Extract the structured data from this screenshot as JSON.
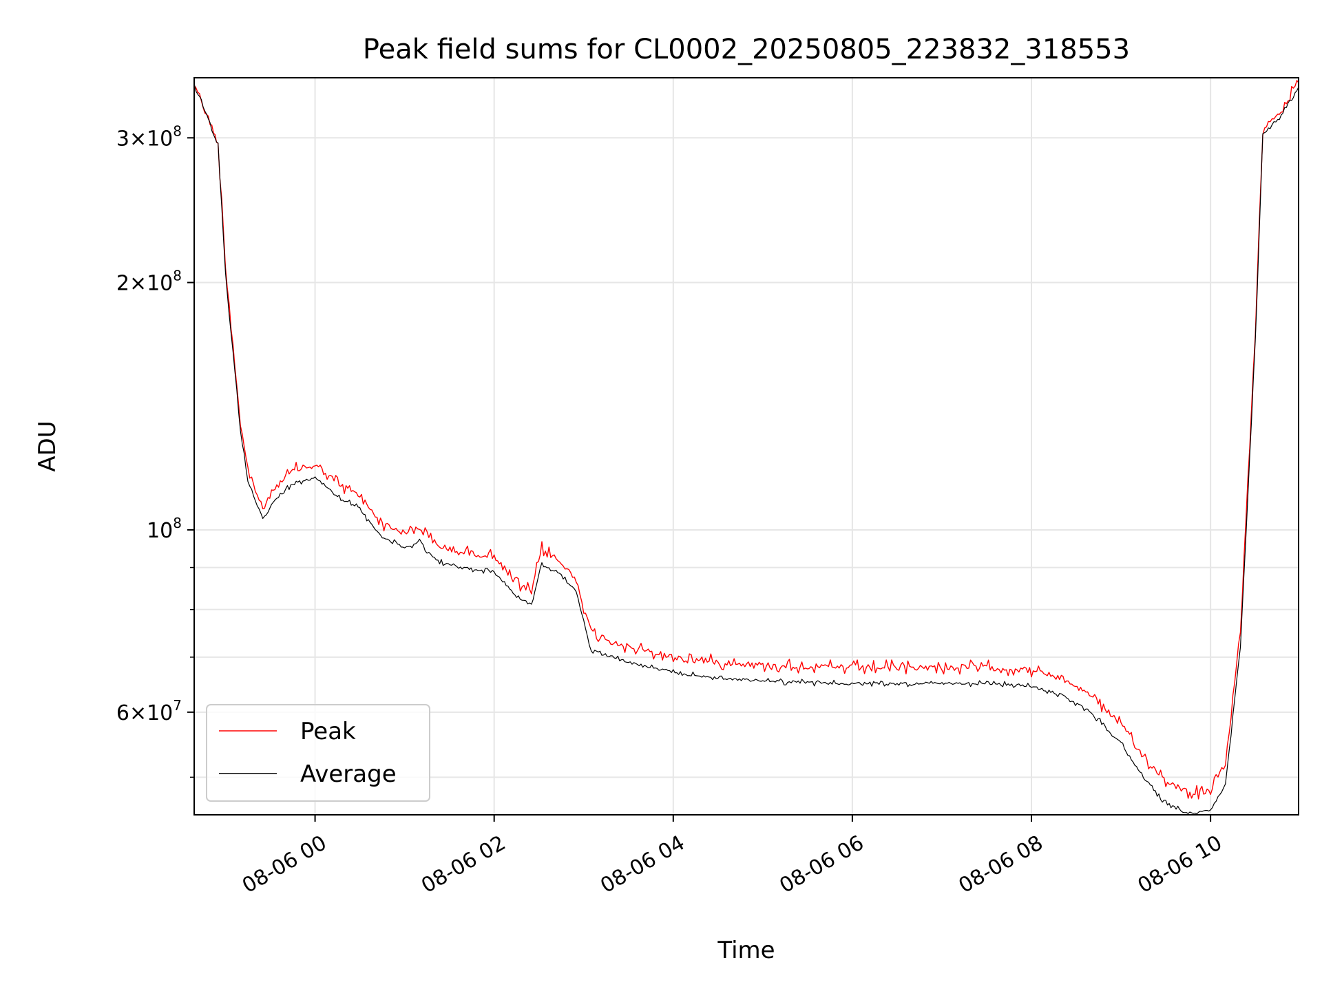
{
  "chart_data": {
    "type": "line",
    "title": "Peak field sums for CL0002_20250805_223832_318553",
    "xlabel": "Time",
    "ylabel": "ADU",
    "x_scale": "time",
    "y_scale": "log",
    "xlim": [
      "08-05 22:39",
      "08-06 10:59"
    ],
    "ylim": [
      45000000,
      355000000
    ],
    "grid": true,
    "legend_position": "lower-left",
    "x_ticks": [
      {
        "t": "08-06 00:00",
        "label": "08-06 00"
      },
      {
        "t": "08-06 02:00",
        "label": "08-06 02"
      },
      {
        "t": "08-06 04:00",
        "label": "08-06 04"
      },
      {
        "t": "08-06 06:00",
        "label": "08-06 06"
      },
      {
        "t": "08-06 08:00",
        "label": "08-06 08"
      },
      {
        "t": "08-06 10:00",
        "label": "08-06 10"
      }
    ],
    "y_ticks": [
      {
        "value": 300000000,
        "mantissa": "3",
        "times": "×10",
        "exp": "8"
      },
      {
        "value": 200000000,
        "mantissa": "2",
        "times": "×10",
        "exp": "8"
      },
      {
        "value": 100000000,
        "mantissa": "",
        "times": "10",
        "exp": "8"
      },
      {
        "value": 60000000,
        "mantissa": "6",
        "times": "×10",
        "exp": "7"
      }
    ],
    "y_minor_ticks": [
      50000000,
      70000000,
      80000000,
      90000000
    ],
    "series": [
      {
        "name": "Peak",
        "color": "#ff0000",
        "t": [
          "08-05 22:39",
          "08-05 22:45",
          "08-05 22:52",
          "08-05 22:55",
          "08-05 23:00",
          "08-05 23:10",
          "08-05 23:15",
          "08-05 23:25",
          "08-05 23:32",
          "08-05 23:45",
          "08-06 00:00",
          "08-06 00:15",
          "08-06 00:30",
          "08-06 00:45",
          "08-06 01:00",
          "08-06 01:10",
          "08-06 01:20",
          "08-06 01:35",
          "08-06 02:00",
          "08-06 02:15",
          "08-06 02:25",
          "08-06 02:32",
          "08-06 02:45",
          "08-06 02:55",
          "08-06 03:05",
          "08-06 03:30",
          "08-06 04:00",
          "08-06 04:30",
          "08-06 05:00",
          "08-06 05:50",
          "08-06 06:30",
          "08-06 07:00",
          "08-06 07:30",
          "08-06 08:00",
          "08-06 08:20",
          "08-06 08:40",
          "08-06 09:00",
          "08-06 09:15",
          "08-06 09:30",
          "08-06 09:45",
          "08-06 10:00",
          "08-06 10:10",
          "08-06 10:20",
          "08-06 10:30",
          "08-06 10:35",
          "08-06 10:45",
          "08-06 10:59"
        ],
        "values": [
          350000000,
          330000000,
          305000000,
          295000000,
          210000000,
          135000000,
          118000000,
          106000000,
          112000000,
          118000000,
          120000000,
          114000000,
          110000000,
          102000000,
          99000000,
          101000000,
          96000000,
          94000000,
          93000000,
          86000000,
          84000000,
          95000000,
          91000000,
          87000000,
          75000000,
          72000000,
          70000000,
          69000000,
          68500000,
          68000000,
          68000000,
          68000000,
          68000000,
          67500000,
          66000000,
          63000000,
          58000000,
          53000000,
          49500000,
          48000000,
          48000000,
          52000000,
          75000000,
          175000000,
          308000000,
          320000000,
          350000000
        ]
      },
      {
        "name": "Average",
        "color": "#000000",
        "t": [
          "08-05 22:39",
          "08-05 22:45",
          "08-05 22:52",
          "08-05 22:55",
          "08-05 23:00",
          "08-05 23:10",
          "08-05 23:15",
          "08-05 23:25",
          "08-05 23:32",
          "08-05 23:45",
          "08-06 00:00",
          "08-06 00:15",
          "08-06 00:30",
          "08-06 00:45",
          "08-06 01:00",
          "08-06 01:10",
          "08-06 01:20",
          "08-06 01:35",
          "08-06 02:00",
          "08-06 02:15",
          "08-06 02:25",
          "08-06 02:32",
          "08-06 02:45",
          "08-06 02:55",
          "08-06 03:05",
          "08-06 03:30",
          "08-06 04:00",
          "08-06 04:30",
          "08-06 05:00",
          "08-06 05:50",
          "08-06 06:30",
          "08-06 07:00",
          "08-06 07:30",
          "08-06 08:00",
          "08-06 08:20",
          "08-06 08:40",
          "08-06 09:00",
          "08-06 09:15",
          "08-06 09:30",
          "08-06 09:45",
          "08-06 10:00",
          "08-06 10:10",
          "08-06 10:20",
          "08-06 10:30",
          "08-06 10:35",
          "08-06 10:45",
          "08-06 10:59"
        ],
        "values": [
          348000000,
          328000000,
          303000000,
          293000000,
          205000000,
          132000000,
          115000000,
          103000000,
          108000000,
          114000000,
          116000000,
          110000000,
          106000000,
          98000000,
          95000000,
          97000000,
          92000000,
          90000000,
          89000000,
          83000000,
          81000000,
          91000000,
          88000000,
          84000000,
          71500000,
          69000000,
          67000000,
          66000000,
          65500000,
          65000000,
          65000000,
          65000000,
          65000000,
          64500000,
          63000000,
          60000000,
          55000000,
          50000000,
          46500000,
          45200000,
          45500000,
          49000000,
          72000000,
          170000000,
          304000000,
          316000000,
          346000000
        ]
      }
    ]
  }
}
